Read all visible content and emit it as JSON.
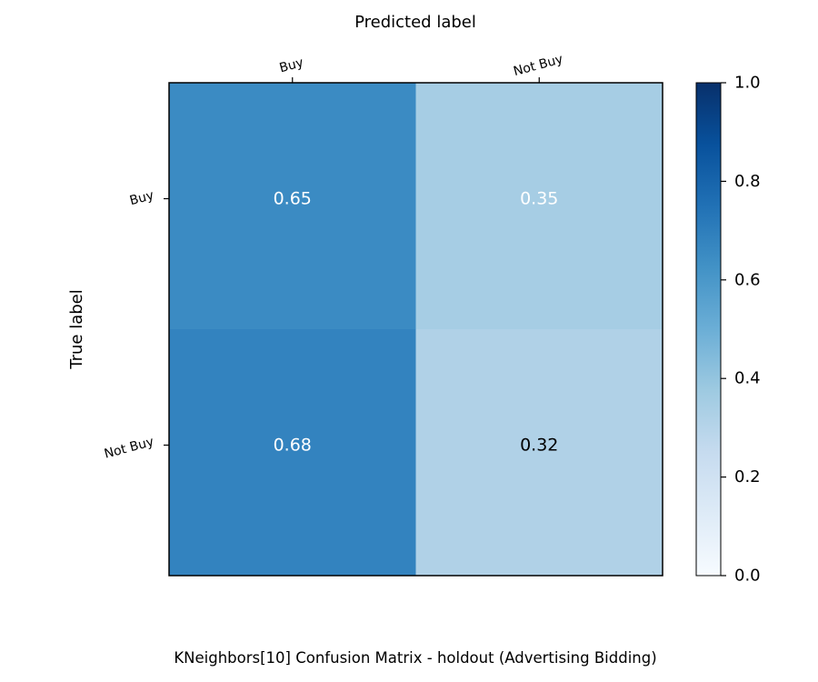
{
  "chart_data": {
    "type": "heatmap",
    "title": "KNeighbors[10] Confusion Matrix - holdout (Advertising Bidding)",
    "xlabel": "Predicted label",
    "ylabel": "True label",
    "x_categories": [
      "Buy",
      "Not Buy"
    ],
    "y_categories": [
      "Buy",
      "Not Buy"
    ],
    "values": [
      [
        0.65,
        0.35
      ],
      [
        0.68,
        0.32
      ]
    ],
    "value_labels": [
      [
        "0.65",
        "0.35"
      ],
      [
        "0.68",
        "0.32"
      ]
    ],
    "colorscale": "Blues",
    "vmin": 0.0,
    "vmax": 1.0,
    "colorbar_ticks": [
      "0.0",
      "0.2",
      "0.4",
      "0.6",
      "0.8",
      "1.0"
    ],
    "x_axis_position": "top",
    "grid": false
  }
}
